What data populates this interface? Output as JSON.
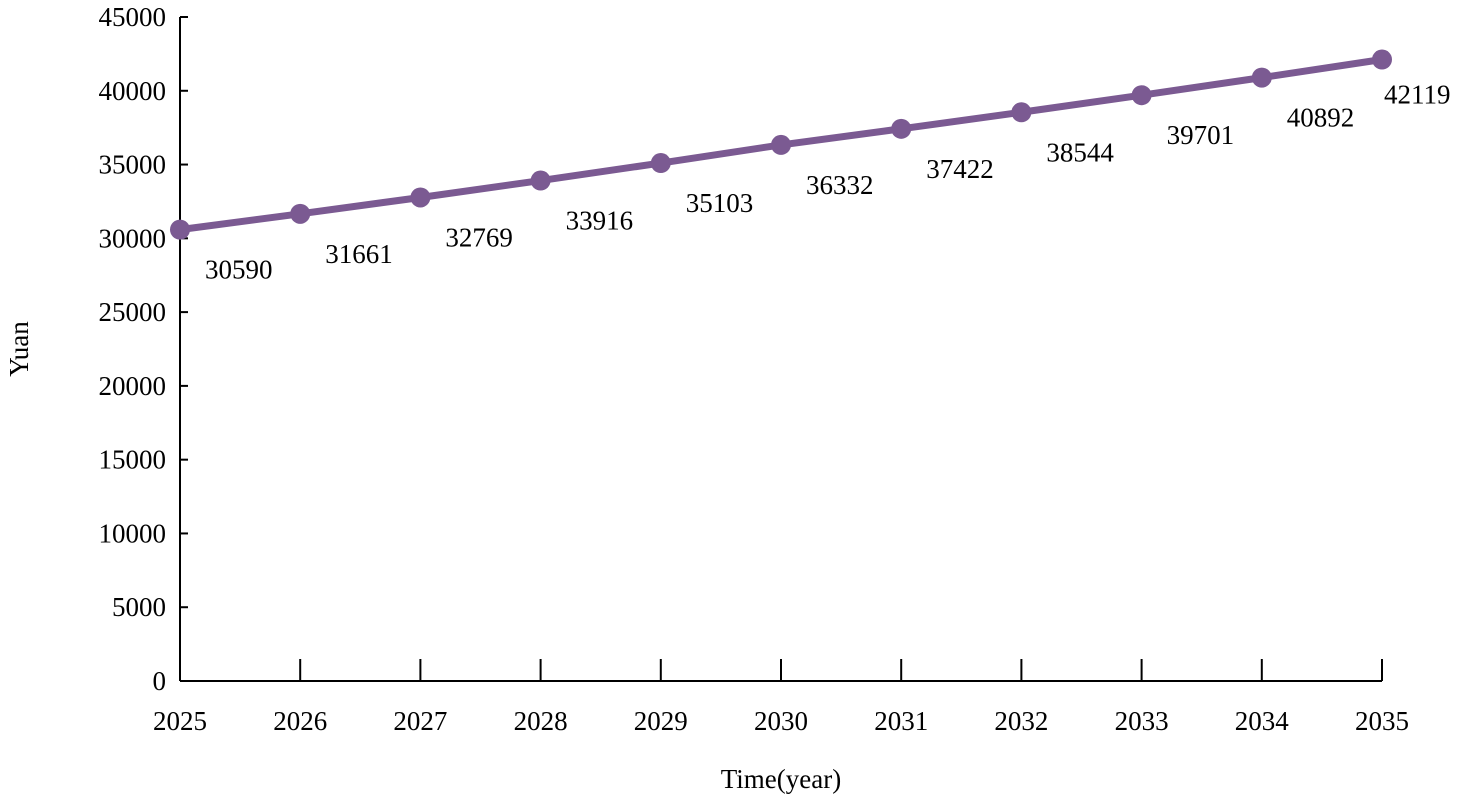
{
  "chart_data": {
    "type": "line",
    "title": "",
    "xlabel": "Time(year)",
    "ylabel": "Yuan",
    "x": [
      2025,
      2026,
      2027,
      2028,
      2029,
      2030,
      2031,
      2032,
      2033,
      2034,
      2035
    ],
    "x_tick_labels": [
      "2025",
      "2026",
      "2027",
      "2028",
      "2029",
      "2030",
      "2031",
      "2032",
      "2033",
      "2034",
      "2035"
    ],
    "y_ticks": [
      0,
      5000,
      10000,
      15000,
      20000,
      25000,
      30000,
      35000,
      40000,
      45000
    ],
    "y_tick_labels": [
      "0",
      "5000",
      "10000",
      "15000",
      "20000",
      "25000",
      "30000",
      "35000",
      "40000",
      "45000"
    ],
    "ylim": [
      0,
      45000
    ],
    "grid": false,
    "legend": "none",
    "series": [
      {
        "color": "#7b5a92",
        "values": [
          30590,
          31661,
          32769,
          33916,
          35103,
          36332,
          37422,
          38544,
          39701,
          40892,
          42119
        ],
        "data_labels": [
          "30590",
          "31661",
          "32769",
          "33916",
          "35103",
          "36332",
          "37422",
          "38544",
          "39701",
          "40892",
          "42119"
        ]
      }
    ]
  }
}
